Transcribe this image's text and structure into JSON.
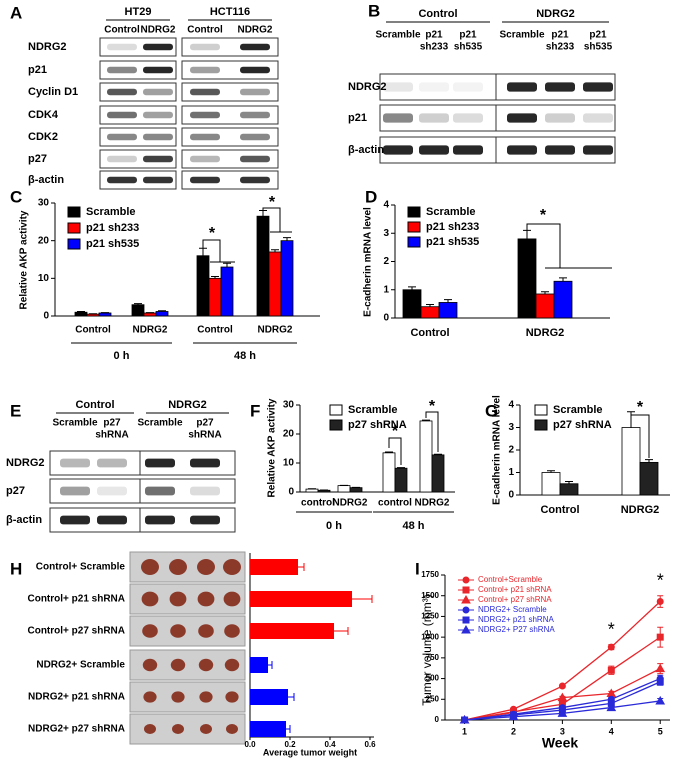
{
  "blots": [
    {
      "panel": "A",
      "groups": [
        {
          "name": "HT29",
          "lanes": [
            [
              "Control"
            ],
            [
              "NDRG2"
            ]
          ]
        },
        {
          "name": "HCT116",
          "lanes": [
            [
              "Control"
            ],
            [
              "NDRG2"
            ]
          ]
        }
      ],
      "rows": [
        "NDRG2",
        "p21",
        "Cyclin D1",
        "CDK4",
        "CDK2",
        "p27",
        "β-actin"
      ]
    },
    {
      "panel": "B",
      "groups": [
        {
          "name": "Control",
          "lanes": [
            [
              "Scramble"
            ],
            [
              "p21",
              "sh233"
            ],
            [
              "p21",
              "sh535"
            ]
          ]
        },
        {
          "name": "NDRG2",
          "lanes": [
            [
              "Scramble"
            ],
            [
              "p21",
              "sh233"
            ],
            [
              "p21",
              "sh535"
            ]
          ]
        }
      ],
      "rows": [
        "NDRG2",
        "p21",
        "β-actin"
      ]
    },
    {
      "panel": "E",
      "groups": [
        {
          "name": "Control",
          "lanes": [
            [
              "Scramble"
            ],
            [
              "p27",
              "shRNA"
            ]
          ]
        },
        {
          "name": "NDRG2",
          "lanes": [
            [
              "Scramble"
            ],
            [
              "p27",
              "shRNA"
            ]
          ]
        }
      ],
      "rows": [
        "NDRG2",
        "p27",
        "β-actin"
      ]
    }
  ],
  "chart_data": [
    {
      "type": "bar",
      "panel": "C",
      "ylabel": "Relative AKP  activity",
      "categories": [
        "Control",
        "NDRG2",
        "Control",
        "NDRG2"
      ],
      "group_labels": [
        "0 h",
        "48 h"
      ],
      "ylim": [
        0,
        30
      ],
      "yticks": [
        0,
        10,
        20,
        30
      ],
      "series": [
        {
          "name": "Scramble",
          "color": "#000000",
          "values": [
            1,
            3,
            16,
            26.5
          ],
          "errors": [
            0.2,
            0.3,
            2,
            1.5
          ]
        },
        {
          "name": "p21 sh233",
          "color": "#ff0000",
          "values": [
            0.5,
            0.8,
            10,
            17
          ],
          "errors": [
            0.1,
            0.1,
            0.5,
            0.6
          ]
        },
        {
          "name": "p21 sh535",
          "color": "#0000ff",
          "values": [
            0.8,
            1.2,
            13,
            20
          ],
          "errors": [
            0.1,
            0.2,
            1,
            0.8
          ]
        }
      ],
      "annotations": [
        "*",
        "*"
      ]
    },
    {
      "type": "bar",
      "panel": "D",
      "ylabel": "E-cadherin mRNA level",
      "categories": [
        "Control",
        "NDRG2"
      ],
      "ylim": [
        0,
        4
      ],
      "yticks": [
        0,
        1,
        2,
        3,
        4
      ],
      "series": [
        {
          "name": "Scramble",
          "color": "#000000",
          "values": [
            1,
            2.8
          ],
          "errors": [
            0.1,
            0.3
          ]
        },
        {
          "name": "p21 sh233",
          "color": "#ff0000",
          "values": [
            0.4,
            0.85
          ],
          "errors": [
            0.08,
            0.08
          ]
        },
        {
          "name": "p21 sh535",
          "color": "#0000ff",
          "values": [
            0.55,
            1.3
          ],
          "errors": [
            0.1,
            0.12
          ]
        }
      ],
      "annotations": [
        "*"
      ]
    },
    {
      "type": "bar",
      "panel": "F",
      "ylabel": "Relative AKP activity",
      "categories": [
        "control",
        "NDRG2",
        "control",
        "NDRG2"
      ],
      "group_labels": [
        "0 h",
        "48 h"
      ],
      "ylim": [
        0,
        30
      ],
      "yticks": [
        0,
        10,
        20,
        30
      ],
      "series": [
        {
          "name": "Scramble",
          "color": "#ffffff",
          "values": [
            1,
            2.2,
            13.5,
            24.5
          ],
          "errors": [
            0.1,
            0.1,
            0.3,
            0.3
          ]
        },
        {
          "name": "p27 shRNA",
          "color": "#222222",
          "values": [
            0.6,
            1.5,
            8.2,
            12.8
          ],
          "errors": [
            0.1,
            0.1,
            0.2,
            0.2
          ]
        }
      ],
      "annotations": [
        "*",
        "*"
      ]
    },
    {
      "type": "bar",
      "panel": "G",
      "ylabel": "E-cadherin mRNA level",
      "categories": [
        "Control",
        "NDRG2"
      ],
      "ylim": [
        0,
        4
      ],
      "yticks": [
        0,
        1,
        2,
        3,
        4
      ],
      "series": [
        {
          "name": "Scramble",
          "color": "#ffffff",
          "values": [
            1,
            3
          ],
          "errors": [
            0.08,
            0.7
          ]
        },
        {
          "name": "p27 shRNA",
          "color": "#222222",
          "values": [
            0.5,
            1.45
          ],
          "errors": [
            0.1,
            0.12
          ]
        }
      ],
      "annotations": [
        "*"
      ]
    },
    {
      "type": "hbar",
      "panel": "H",
      "categories": [
        "Control+ Scramble",
        "Control+ p21 shRNA",
        "Control+ p27 shRNA",
        "NDRG2+ Scramble",
        "NDRG2+ p21 shRNA",
        "NDRG2+ p27 shRNA"
      ],
      "values": [
        0.24,
        0.51,
        0.42,
        0.09,
        0.19,
        0.18
      ],
      "errors": [
        0.03,
        0.1,
        0.07,
        0.02,
        0.03,
        0.02
      ],
      "colors": [
        "#ff0000",
        "#ff0000",
        "#ff0000",
        "#0000ff",
        "#0000ff",
        "#0000ff"
      ],
      "xlim": [
        0,
        0.6
      ],
      "xticks": [
        {
          "value": 0,
          "label": "0.0"
        },
        0.2,
        0.4,
        0.6
      ],
      "xlabel": "Average tumor weight"
    },
    {
      "type": "line",
      "panel": "I",
      "xlabel": "Week",
      "ylabel": "Tumor volume (mm³)",
      "x": [
        1,
        2,
        3,
        4,
        5
      ],
      "xlim": [
        0.6,
        5.2
      ],
      "xticks": [
        1,
        2,
        3,
        4,
        5
      ],
      "ylim": [
        0,
        1750
      ],
      "yticks": [
        0,
        250,
        500,
        750,
        1000,
        1250,
        1500,
        1750
      ],
      "series": [
        {
          "name": "Control+Scramble",
          "color": "#e8262b",
          "marker": "circle",
          "values": [
            0,
            130,
            410,
            880,
            1430
          ],
          "errors": [
            0,
            10,
            15,
            30,
            70
          ]
        },
        {
          "name": "Control+ p21 shRNA",
          "color": "#e8262b",
          "marker": "square",
          "values": [
            0,
            100,
            190,
            600,
            1000
          ],
          "errors": [
            0,
            10,
            15,
            50,
            120
          ]
        },
        {
          "name": "Control+ p27 shRNA",
          "color": "#e8262b",
          "marker": "triangle",
          "values": [
            0,
            90,
            270,
            320,
            620
          ],
          "errors": [
            0,
            10,
            15,
            25,
            60
          ]
        },
        {
          "name": "NDRG2+ Scramble",
          "color": "#2a2ad8",
          "marker": "circle",
          "values": [
            0,
            70,
            150,
            250,
            500
          ],
          "errors": [
            0,
            8,
            12,
            20,
            40
          ]
        },
        {
          "name": "NDRG2+ p21 shRNA",
          "color": "#2a2ad8",
          "marker": "square",
          "values": [
            0,
            60,
            120,
            200,
            460
          ],
          "errors": [
            0,
            8,
            10,
            20,
            40
          ]
        },
        {
          "name": "NDRG2+ P27 shRNA",
          "color": "#2a2ad8",
          "marker": "triangle",
          "values": [
            0,
            40,
            80,
            150,
            230
          ],
          "errors": [
            0,
            5,
            8,
            15,
            30
          ]
        }
      ],
      "annotations": [
        "*",
        "*"
      ]
    }
  ]
}
